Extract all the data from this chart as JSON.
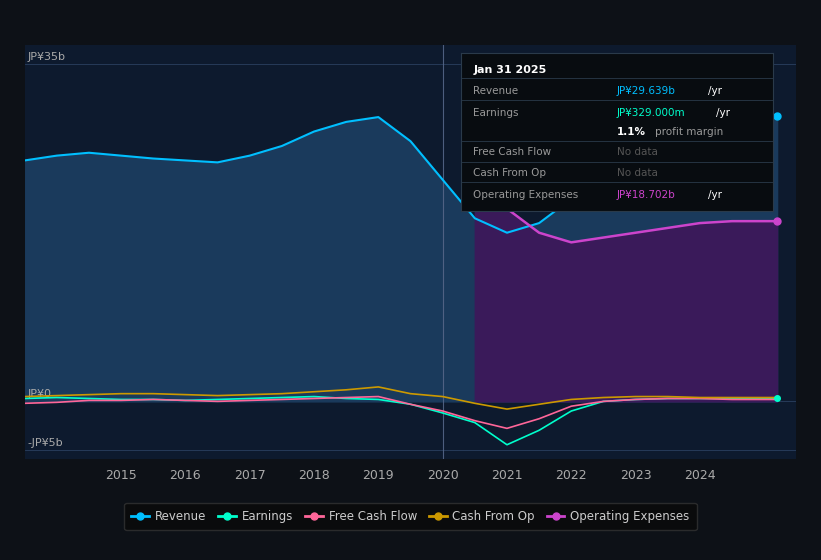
{
  "bg_color": "#0d1117",
  "chart_bg": "#0d1a2e",
  "ylabel_top": "JP¥35b",
  "ylabel_zero": "JP¥0",
  "ylabel_neg": "-JP¥5b",
  "ylim": [
    -6,
    37
  ],
  "xticks": [
    2015,
    2016,
    2017,
    2018,
    2019,
    2020,
    2021,
    2022,
    2023,
    2024
  ],
  "xlim": [
    2013.5,
    2025.5
  ],
  "revenue_color": "#00bfff",
  "revenue_fill": "#1a3a5c",
  "earnings_color": "#00ffcc",
  "fcf_color": "#ff6699",
  "cashfromop_color": "#cc9900",
  "opex_color": "#cc44cc",
  "opex_fill": "#3a1a5a",
  "vertical_line_x": 2020.0,
  "legend_items": [
    "Revenue",
    "Earnings",
    "Free Cash Flow",
    "Cash From Op",
    "Operating Expenses"
  ],
  "legend_colors": [
    "#00bfff",
    "#00ffcc",
    "#ff6699",
    "#cc9900",
    "#cc44cc"
  ],
  "revenue_x": [
    2013.5,
    2014,
    2014.5,
    2015,
    2015.5,
    2016,
    2016.5,
    2017,
    2017.5,
    2018,
    2018.5,
    2019,
    2019.5,
    2020,
    2020.5,
    2021,
    2021.5,
    2022,
    2022.5,
    2023,
    2023.5,
    2024,
    2024.5,
    2025.2
  ],
  "revenue_y": [
    25,
    25.5,
    25.8,
    25.5,
    25.2,
    25.0,
    24.8,
    25.5,
    26.5,
    28.0,
    29.0,
    29.5,
    27.0,
    23.0,
    19.0,
    17.5,
    18.5,
    21.0,
    23.5,
    25.0,
    26.5,
    28.0,
    29.0,
    29.6
  ],
  "earnings_x": [
    2013.5,
    2014,
    2014.5,
    2015,
    2015.5,
    2016,
    2016.5,
    2017,
    2017.5,
    2018,
    2018.5,
    2019,
    2019.5,
    2020,
    2020.5,
    2021,
    2021.5,
    2022,
    2022.5,
    2023,
    2023.5,
    2024,
    2024.5,
    2025.2
  ],
  "earnings_y": [
    0.3,
    0.4,
    0.3,
    0.2,
    0.2,
    0.1,
    0.2,
    0.3,
    0.4,
    0.5,
    0.3,
    0.2,
    -0.3,
    -1.2,
    -2.2,
    -4.5,
    -3.0,
    -1.0,
    0.0,
    0.2,
    0.3,
    0.3,
    0.3,
    0.33
  ],
  "fcf_x": [
    2013.5,
    2014,
    2014.5,
    2015,
    2015.5,
    2016,
    2016.5,
    2017,
    2017.5,
    2018,
    2018.5,
    2019,
    2019.5,
    2020,
    2020.5,
    2021,
    2021.5,
    2022,
    2022.5,
    2023,
    2023.5,
    2024,
    2024.5,
    2025.2
  ],
  "fcf_y": [
    -0.2,
    -0.1,
    0.1,
    0.1,
    0.2,
    0.1,
    0.0,
    0.1,
    0.2,
    0.3,
    0.4,
    0.5,
    -0.3,
    -1.0,
    -2.0,
    -2.8,
    -1.8,
    -0.5,
    0.0,
    0.2,
    0.3,
    0.3,
    0.2,
    0.2
  ],
  "cashop_x": [
    2013.5,
    2014,
    2014.5,
    2015,
    2015.5,
    2016,
    2016.5,
    2017,
    2017.5,
    2018,
    2018.5,
    2019,
    2019.5,
    2020,
    2020.5,
    2021,
    2021.5,
    2022,
    2022.5,
    2023,
    2023.5,
    2024,
    2024.5,
    2025.2
  ],
  "cashop_y": [
    0.5,
    0.6,
    0.7,
    0.8,
    0.8,
    0.7,
    0.6,
    0.7,
    0.8,
    1.0,
    1.2,
    1.5,
    0.8,
    0.5,
    -0.2,
    -0.8,
    -0.3,
    0.2,
    0.4,
    0.5,
    0.5,
    0.4,
    0.4,
    0.4
  ],
  "opex_x": [
    2020.5,
    2021,
    2021.5,
    2022,
    2022.5,
    2023,
    2023.5,
    2024,
    2024.5,
    2025.2
  ],
  "opex_y": [
    22.0,
    20.0,
    17.5,
    16.5,
    17.0,
    17.5,
    18.0,
    18.5,
    18.7,
    18.7
  ],
  "tooltip_rows": [
    {
      "label": "Jan 31 2025",
      "value": "",
      "suffix": "",
      "header": true
    },
    {
      "label": "Revenue",
      "value": "JP¥29.639b",
      "suffix": " /yr",
      "color": "#00bfff"
    },
    {
      "label": "Earnings",
      "value": "JP¥329.000m",
      "suffix": " /yr",
      "color": "#00ffcc"
    },
    {
      "label": "",
      "value": "1.1%",
      "suffix": " profit margin",
      "color": "white",
      "bold_val": true
    },
    {
      "label": "Free Cash Flow",
      "value": "No data",
      "suffix": "",
      "color": "#555555"
    },
    {
      "label": "Cash From Op",
      "value": "No data",
      "suffix": "",
      "color": "#555555"
    },
    {
      "label": "Operating Expenses",
      "value": "JP¥18.702b",
      "suffix": " /yr",
      "color": "#cc44cc"
    }
  ]
}
